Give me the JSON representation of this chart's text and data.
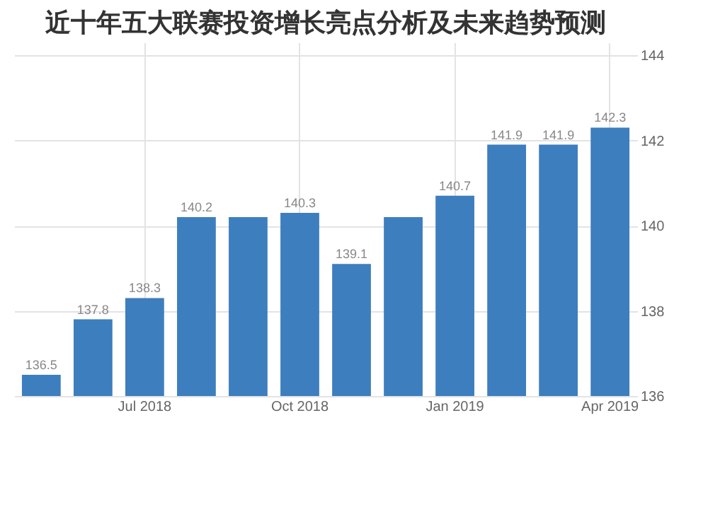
{
  "chart_data": {
    "type": "bar",
    "title": "近十年五大联赛投资增长亮点分析及未来趋势预测",
    "categories": [
      null,
      null,
      "Jul 2018",
      null,
      null,
      "Oct 2018",
      null,
      null,
      "Jan 2019",
      null,
      null,
      "Apr 2019"
    ],
    "values": [
      136.5,
      137.8,
      138.3,
      140.2,
      140.2,
      140.3,
      139.1,
      140.2,
      140.7,
      141.9,
      141.9,
      142.3
    ],
    "value_labels": [
      "136.5",
      "137.8",
      "138.3",
      "140.2",
      null,
      "140.3",
      "139.1",
      null,
      "140.7",
      "141.9",
      "141.9",
      "142.3"
    ],
    "color": "#3d7ebf",
    "ylim": [
      136,
      144.3
    ],
    "yticks": [
      136,
      138,
      140,
      142,
      144
    ],
    "grid": true
  }
}
